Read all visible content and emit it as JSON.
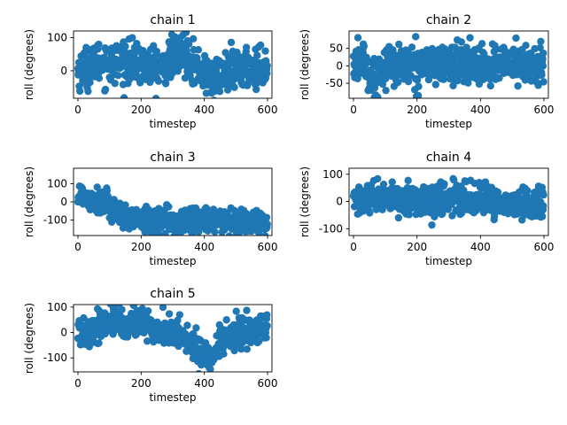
{
  "chart_data": [
    {
      "type": "scatter",
      "title": "chain 1",
      "xlabel": "timestep",
      "ylabel": "roll (degrees)",
      "xlim": [
        -14,
        614
      ],
      "ylim": [
        -83,
        120
      ],
      "xticks": [
        "0",
        "200",
        "400",
        "600"
      ],
      "yticks": [
        "0",
        "100"
      ],
      "marker_color": "#1f77b4",
      "n_points": 600,
      "trend": [
        [
          0,
          0
        ],
        [
          60,
          25
        ],
        [
          120,
          25
        ],
        [
          200,
          20
        ],
        [
          260,
          5
        ],
        [
          300,
          45
        ],
        [
          340,
          55
        ],
        [
          380,
          10
        ],
        [
          420,
          -25
        ],
        [
          460,
          -10
        ],
        [
          520,
          5
        ],
        [
          600,
          10
        ]
      ],
      "spread": 30
    },
    {
      "type": "scatter",
      "title": "chain 2",
      "xlabel": "timestep",
      "ylabel": "roll (degrees)",
      "xlim": [
        -14,
        614
      ],
      "ylim": [
        -93,
        100
      ],
      "xticks": [
        "0",
        "200",
        "400",
        "600"
      ],
      "yticks": [
        "-50",
        "0",
        "50"
      ],
      "marker_color": "#1f77b4",
      "n_points": 600,
      "trend": [
        [
          0,
          0
        ],
        [
          30,
          20
        ],
        [
          60,
          -45
        ],
        [
          100,
          0
        ],
        [
          200,
          5
        ],
        [
          300,
          5
        ],
        [
          400,
          5
        ],
        [
          500,
          5
        ],
        [
          600,
          0
        ]
      ],
      "spread": 28
    },
    {
      "type": "scatter",
      "title": "chain 3",
      "xlabel": "timestep",
      "ylabel": "roll (degrees)",
      "xlim": [
        -14,
        614
      ],
      "ylim": [
        -185,
        185
      ],
      "xticks": [
        "0",
        "200",
        "400",
        "600"
      ],
      "yticks": [
        "-100",
        "0",
        "100"
      ],
      "marker_color": "#1f77b4",
      "n_points": 600,
      "trend": [
        [
          0,
          40
        ],
        [
          40,
          20
        ],
        [
          80,
          0
        ],
        [
          120,
          -50
        ],
        [
          160,
          -110
        ],
        [
          200,
          -100
        ],
        [
          300,
          -110
        ],
        [
          400,
          -100
        ],
        [
          500,
          -110
        ],
        [
          600,
          -110
        ]
      ],
      "spread": 35
    },
    {
      "type": "scatter",
      "title": "chain 4",
      "xlabel": "timestep",
      "ylabel": "roll (degrees)",
      "xlim": [
        -14,
        614
      ],
      "ylim": [
        -125,
        122
      ],
      "xticks": [
        "0",
        "200",
        "400",
        "600"
      ],
      "yticks": [
        "-100",
        "0",
        "100"
      ],
      "marker_color": "#1f77b4",
      "n_points": 600,
      "trend": [
        [
          0,
          5
        ],
        [
          100,
          5
        ],
        [
          200,
          5
        ],
        [
          300,
          10
        ],
        [
          400,
          5
        ],
        [
          500,
          -10
        ],
        [
          600,
          0
        ]
      ],
      "spread": 28
    },
    {
      "type": "scatter",
      "title": "chain 5",
      "xlabel": "timestep",
      "ylabel": "roll (degrees)",
      "xlim": [
        -14,
        614
      ],
      "ylim": [
        -155,
        110
      ],
      "xticks": [
        "0",
        "200",
        "400",
        "600"
      ],
      "yticks": [
        "-100",
        "0",
        "100"
      ],
      "marker_color": "#1f77b4",
      "n_points": 600,
      "trend": [
        [
          0,
          0
        ],
        [
          60,
          20
        ],
        [
          120,
          40
        ],
        [
          200,
          40
        ],
        [
          260,
          5
        ],
        [
          330,
          -10
        ],
        [
          370,
          -60
        ],
        [
          400,
          -100
        ],
        [
          430,
          -80
        ],
        [
          470,
          -20
        ],
        [
          540,
          0
        ],
        [
          600,
          20
        ]
      ],
      "spread": 30
    }
  ]
}
